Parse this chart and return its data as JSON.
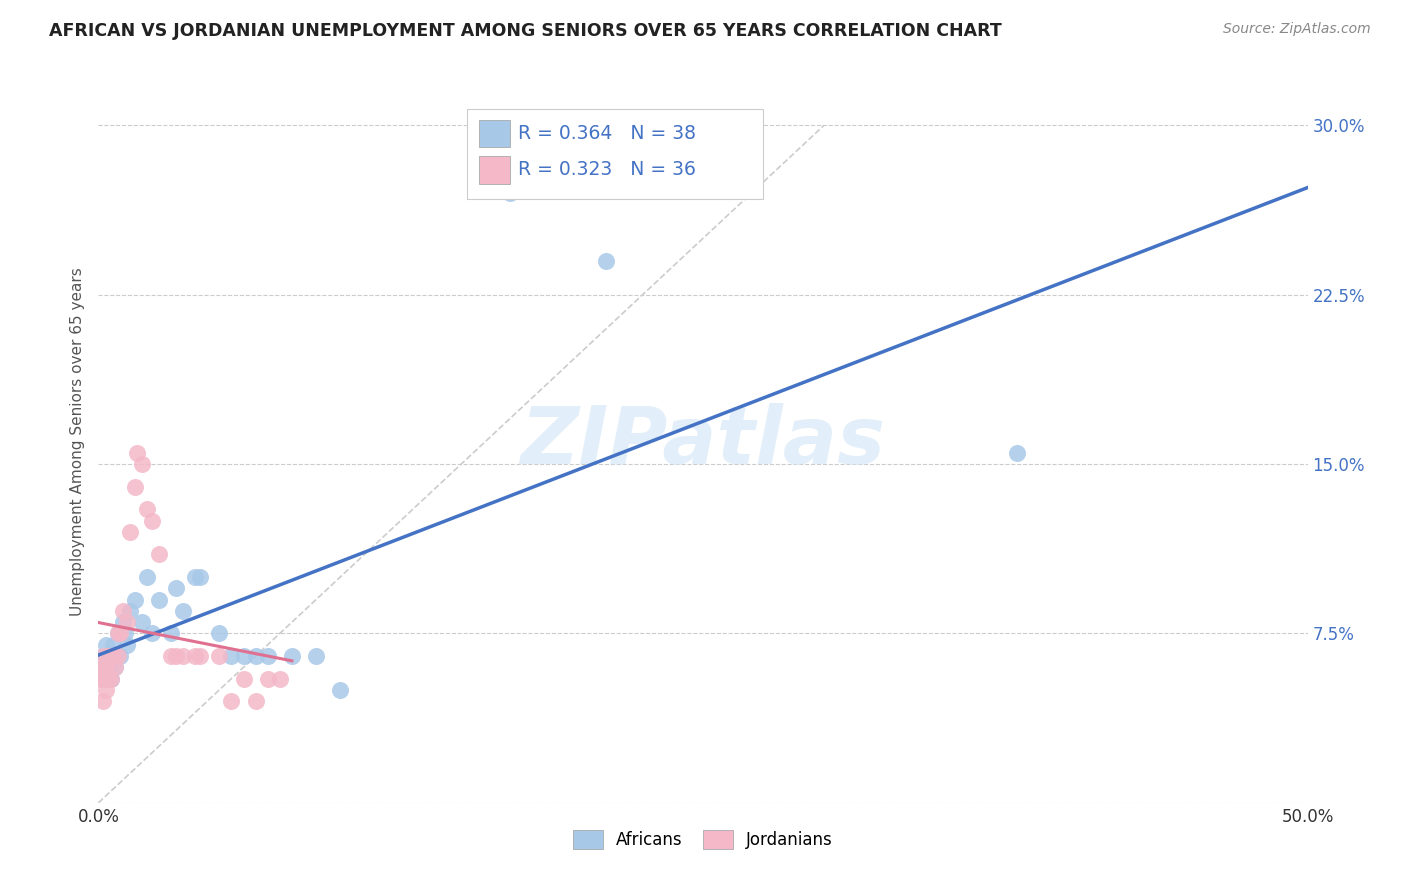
{
  "title": "AFRICAN VS JORDANIAN UNEMPLOYMENT AMONG SENIORS OVER 65 YEARS CORRELATION CHART",
  "source": "Source: ZipAtlas.com",
  "ylabel": "Unemployment Among Seniors over 65 years",
  "xlim": [
    0.0,
    0.5
  ],
  "ylim": [
    0.0,
    0.32
  ],
  "xticks": [
    0.0,
    0.1,
    0.2,
    0.3,
    0.4,
    0.5
  ],
  "xticklabels": [
    "0.0%",
    "",
    "",
    "",
    "",
    "50.0%"
  ],
  "yticks": [
    0.0,
    0.075,
    0.15,
    0.225,
    0.3
  ],
  "yticklabels_right": [
    "",
    "7.5%",
    "15.0%",
    "22.5%",
    "30.0%"
  ],
  "africans_R": 0.364,
  "africans_N": 38,
  "jordanians_R": 0.323,
  "jordanians_N": 36,
  "african_color": "#a8c8e8",
  "jordanian_color": "#f4b8c8",
  "african_line_color": "#4472C4",
  "jordanian_line_color": "#e07090",
  "watermark_text": "ZIPatlas",
  "africans_x": [
    0.001,
    0.001,
    0.002,
    0.002,
    0.003,
    0.003,
    0.004,
    0.005,
    0.005,
    0.006,
    0.007,
    0.008,
    0.009,
    0.01,
    0.011,
    0.012,
    0.013,
    0.015,
    0.018,
    0.02,
    0.022,
    0.025,
    0.03,
    0.032,
    0.035,
    0.04,
    0.042,
    0.05,
    0.055,
    0.06,
    0.065,
    0.07,
    0.08,
    0.09,
    0.1,
    0.17,
    0.21,
    0.38
  ],
  "africans_y": [
    0.055,
    0.06,
    0.055,
    0.065,
    0.06,
    0.07,
    0.06,
    0.065,
    0.055,
    0.07,
    0.06,
    0.075,
    0.065,
    0.08,
    0.075,
    0.07,
    0.085,
    0.09,
    0.08,
    0.1,
    0.075,
    0.09,
    0.075,
    0.095,
    0.085,
    0.1,
    0.1,
    0.075,
    0.065,
    0.065,
    0.065,
    0.065,
    0.065,
    0.065,
    0.05,
    0.27,
    0.24,
    0.155
  ],
  "jordanians_x": [
    0.001,
    0.001,
    0.002,
    0.002,
    0.002,
    0.003,
    0.003,
    0.004,
    0.004,
    0.005,
    0.005,
    0.006,
    0.007,
    0.008,
    0.008,
    0.009,
    0.01,
    0.012,
    0.013,
    0.015,
    0.016,
    0.018,
    0.02,
    0.022,
    0.025,
    0.03,
    0.032,
    0.035,
    0.04,
    0.042,
    0.05,
    0.055,
    0.06,
    0.065,
    0.07,
    0.075
  ],
  "jordanians_y": [
    0.055,
    0.06,
    0.045,
    0.055,
    0.065,
    0.06,
    0.05,
    0.055,
    0.065,
    0.055,
    0.065,
    0.065,
    0.06,
    0.065,
    0.075,
    0.075,
    0.085,
    0.08,
    0.12,
    0.14,
    0.155,
    0.15,
    0.13,
    0.125,
    0.11,
    0.065,
    0.065,
    0.065,
    0.065,
    0.065,
    0.065,
    0.045,
    0.055,
    0.045,
    0.055,
    0.055
  ]
}
